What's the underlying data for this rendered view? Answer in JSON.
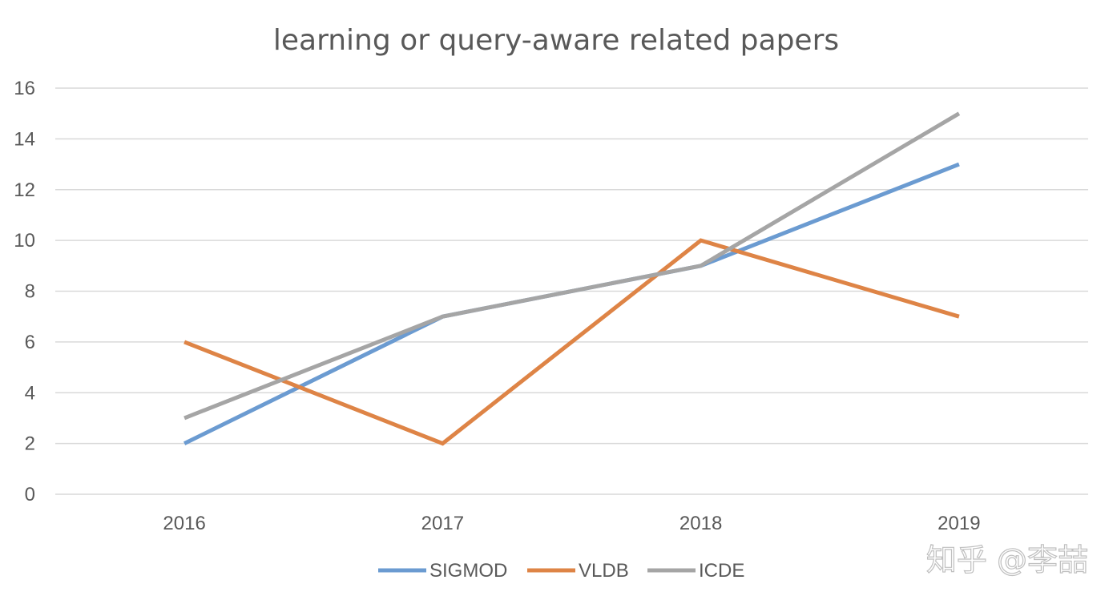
{
  "chart_data": {
    "type": "line",
    "title": "learning or query-aware related papers",
    "categories": [
      "2016",
      "2017",
      "2018",
      "2019"
    ],
    "series": [
      {
        "name": "SIGMOD",
        "color": "#6b9bd1",
        "values": [
          2,
          7,
          9,
          13
        ]
      },
      {
        "name": "VLDB",
        "color": "#de8446",
        "values": [
          6,
          2,
          10,
          7
        ]
      },
      {
        "name": "ICDE",
        "color": "#a5a5a5",
        "values": [
          3,
          7,
          9,
          15
        ]
      }
    ],
    "xlabel": "",
    "ylabel": "",
    "ylim": [
      0,
      16
    ],
    "yticks": [
      0,
      2,
      4,
      6,
      8,
      10,
      12,
      14,
      16
    ],
    "grid": true,
    "legend_position": "bottom"
  },
  "watermark": "知乎 @李喆"
}
